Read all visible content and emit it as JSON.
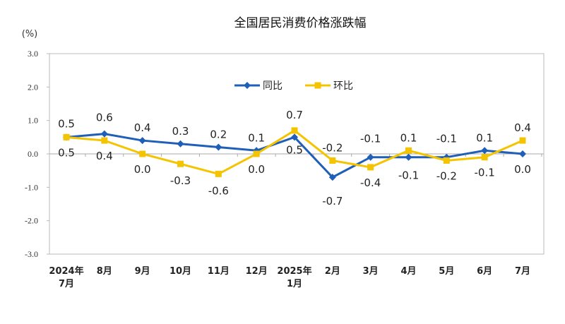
{
  "chart_data": {
    "type": "line",
    "title": "全国居民消费价格涨跌幅",
    "ylabel": "(%)",
    "ylim": [
      -3.0,
      3.0
    ],
    "yticks": [
      "3.0",
      "2.0",
      "1.0",
      "0.0",
      "-1.0",
      "-2.0",
      "-3.0"
    ],
    "categories": [
      [
        "2024年",
        "7月"
      ],
      [
        "8月"
      ],
      [
        "9月"
      ],
      [
        "10月"
      ],
      [
        "11月"
      ],
      [
        "12月"
      ],
      [
        "2025年",
        "1月"
      ],
      [
        "2月"
      ],
      [
        "3月"
      ],
      [
        "4月"
      ],
      [
        "5月"
      ],
      [
        "6月"
      ],
      [
        "7月"
      ]
    ],
    "legend_position": "top-center",
    "grid": false,
    "series": [
      {
        "name": "同比",
        "color": "#1f5fb8",
        "marker": "diamond",
        "values": [
          0.5,
          0.6,
          0.4,
          0.3,
          0.2,
          0.1,
          0.5,
          -0.7,
          -0.1,
          -0.1,
          -0.1,
          0.1,
          0.0
        ]
      },
      {
        "name": "环比",
        "color": "#f5c400",
        "marker": "square",
        "values": [
          0.5,
          0.4,
          0.0,
          -0.3,
          -0.6,
          0.0,
          0.7,
          -0.2,
          -0.4,
          0.1,
          -0.2,
          -0.1,
          0.4
        ]
      }
    ]
  }
}
